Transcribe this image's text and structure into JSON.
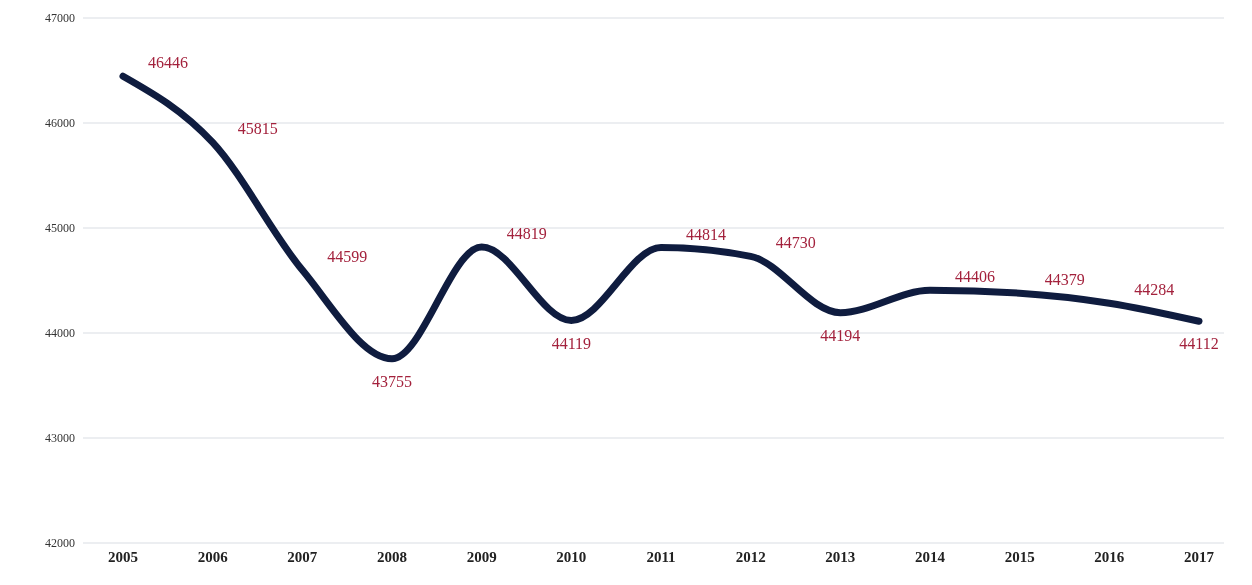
{
  "chart_data": {
    "type": "line",
    "categories": [
      "2005",
      "2006",
      "2007",
      "2008",
      "2009",
      "2010",
      "2011",
      "2012",
      "2013",
      "2014",
      "2015",
      "2016",
      "2017"
    ],
    "series": [
      {
        "color": "#0f1c3f",
        "values": [
          46446,
          45815,
          44599,
          43755,
          44819,
          44119,
          44814,
          44730,
          44194,
          44406,
          44379,
          44284,
          44112
        ]
      }
    ],
    "ylim": [
      42000,
      47000
    ],
    "yticks": [
      42000,
      43000,
      44000,
      45000,
      46000,
      47000
    ],
    "grid": "y",
    "legend": false,
    "marker": "none",
    "line_style": "solid",
    "data_labels": true
  }
}
